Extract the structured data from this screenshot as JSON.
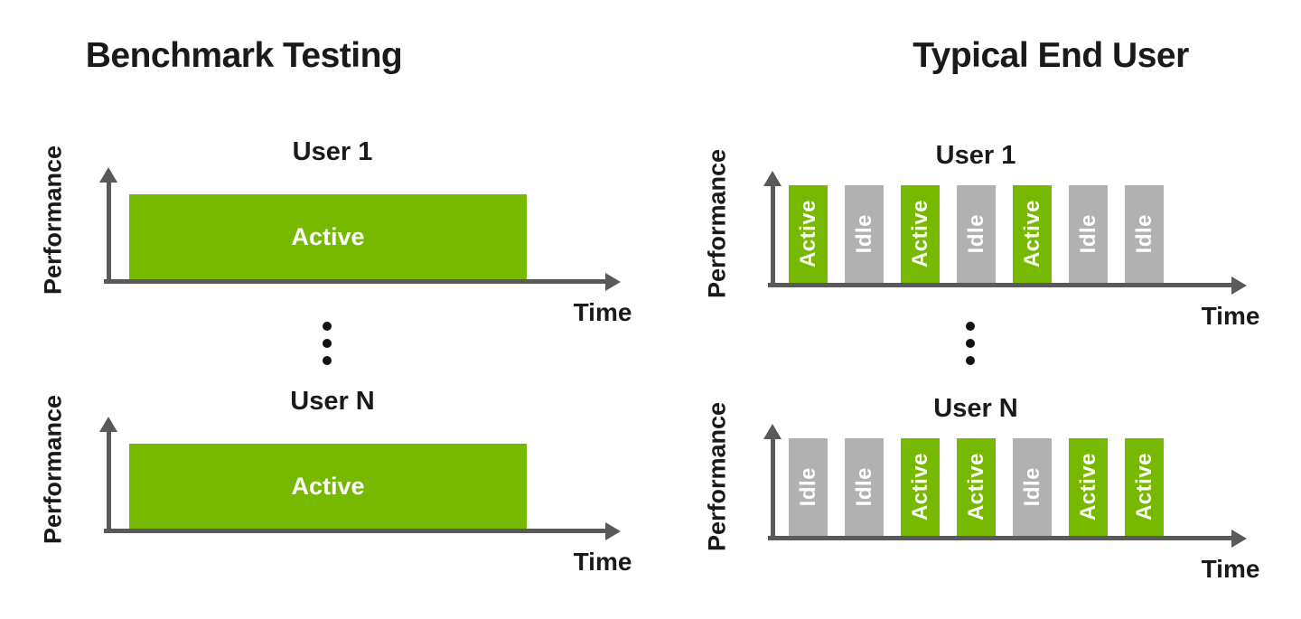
{
  "colors": {
    "background": "#ffffff",
    "ink": "#1a1a1a",
    "axis": "#595959",
    "active": "#76b900",
    "idle": "#b1b1b1",
    "bar_text": "#ffffff"
  },
  "left": {
    "title": "Benchmark Testing",
    "separator_icon": "vertical-ellipsis",
    "panels": [
      {
        "user": "User 1",
        "y_label": "Performance",
        "x_label": "Time",
        "bars": [
          {
            "label": "Active",
            "state": "active"
          }
        ]
      },
      {
        "user": "User N",
        "y_label": "Performance",
        "x_label": "Time",
        "bars": [
          {
            "label": "Active",
            "state": "active"
          }
        ]
      }
    ]
  },
  "right": {
    "title": "Typical End User",
    "separator_icon": "vertical-ellipsis",
    "panels": [
      {
        "user": "User 1",
        "y_label": "Performance",
        "x_label": "Time",
        "bars": [
          {
            "label": "Active",
            "state": "active"
          },
          {
            "label": "Idle",
            "state": "idle"
          },
          {
            "label": "Active",
            "state": "active"
          },
          {
            "label": "Idle",
            "state": "idle"
          },
          {
            "label": "Active",
            "state": "active"
          },
          {
            "label": "Idle",
            "state": "idle"
          },
          {
            "label": "Idle",
            "state": "idle"
          }
        ]
      },
      {
        "user": "User N",
        "y_label": "Performance",
        "x_label": "Time",
        "bars": [
          {
            "label": "Idle",
            "state": "idle"
          },
          {
            "label": "Idle",
            "state": "idle"
          },
          {
            "label": "Active",
            "state": "active"
          },
          {
            "label": "Active",
            "state": "active"
          },
          {
            "label": "Idle",
            "state": "idle"
          },
          {
            "label": "Active",
            "state": "active"
          },
          {
            "label": "Active",
            "state": "active"
          }
        ]
      }
    ]
  }
}
